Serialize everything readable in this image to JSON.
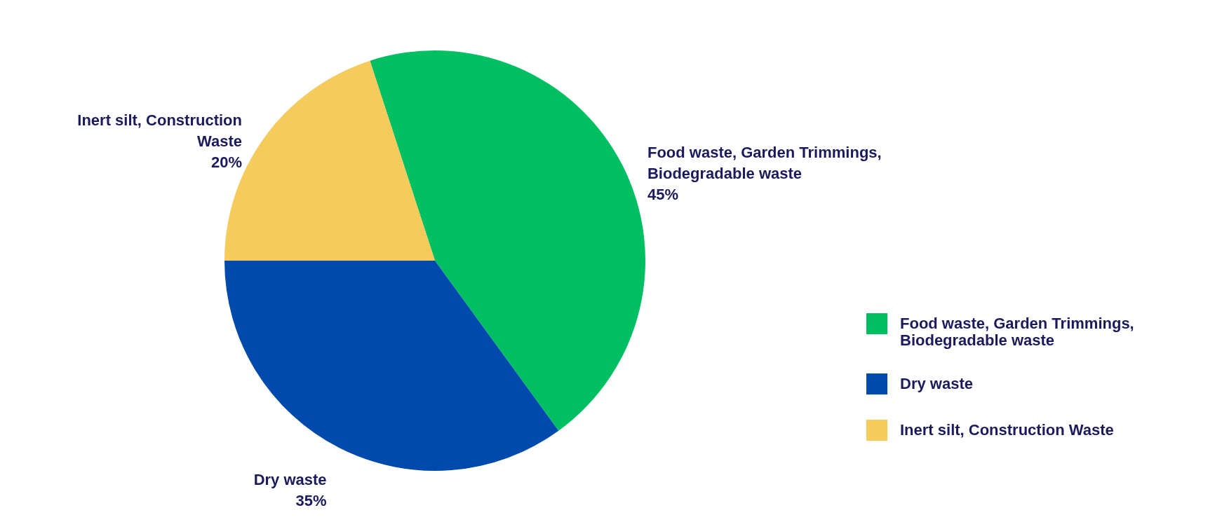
{
  "chart_data": {
    "type": "pie",
    "categories": [
      "Food waste, Garden Trimmings, Biodegradable waste",
      "Dry waste",
      "Inert silt, Construction Waste"
    ],
    "values": [
      45,
      35,
      20
    ],
    "colors": [
      "#00bf63",
      "#004aad",
      "#f5cb5c"
    ],
    "value_labels": [
      "45%",
      "35%",
      "20%"
    ],
    "legend": "right"
  }
}
